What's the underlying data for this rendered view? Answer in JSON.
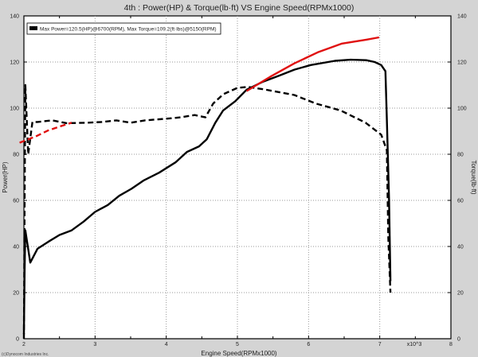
{
  "chart_data": {
    "type": "line",
    "title": "4th : Power(HP) & Torque(lb·ft) VS Engine Speed(RPMx1000)",
    "xlabel": "Engine Speed(RPMx1000)",
    "x_multiplier_label": "x10^3",
    "ylabel_left": "Power(HP)",
    "ylabel_right": "Torque(lb·ft)",
    "xlim": [
      2,
      8
    ],
    "ylim": [
      0,
      140
    ],
    "x_ticks": [
      2,
      3,
      4,
      5,
      6,
      7,
      8
    ],
    "y_ticks": [
      0,
      20,
      40,
      60,
      80,
      100,
      120,
      140
    ],
    "grid": true,
    "legend": {
      "placement": "top-left",
      "text": "Max Power=120.5(HP)@6700(RPM), Max Torque=109.2(ft·lbs)@5150(RPM)"
    },
    "copyright": "(c)Dynocom Industries Inc.",
    "colors": {
      "black": "#000000",
      "red": "#e01010"
    },
    "series": [
      {
        "kind": "power",
        "color": "#000000",
        "dash": false,
        "x": [
          2.0,
          2.01,
          2.02,
          2.09,
          2.19,
          2.34,
          2.5,
          2.67,
          2.84,
          3.0,
          3.18,
          3.34,
          3.51,
          3.68,
          3.9,
          4.13,
          4.29,
          4.46,
          4.57,
          4.69,
          4.8,
          4.97,
          5.13,
          5.36,
          5.58,
          5.8,
          6.03,
          6.37,
          6.59,
          6.81,
          6.93,
          7.02,
          7.08,
          7.1,
          7.13,
          7.15
        ],
        "y": [
          2,
          30,
          47,
          33,
          39,
          42,
          45,
          47,
          50.8,
          55,
          58,
          62,
          65,
          68.6,
          72,
          76.5,
          81,
          83.4,
          86.5,
          93.7,
          99,
          103,
          108,
          111.5,
          114,
          116.7,
          118.7,
          120.5,
          121,
          120.8,
          120,
          118.7,
          116,
          95,
          61,
          25
        ]
      },
      {
        "kind": "torque",
        "color": "#000000",
        "dash": true,
        "x": [
          2.0,
          2.01,
          2.02,
          2.04,
          2.06,
          2.12,
          2.19,
          2.4,
          2.6,
          2.9,
          3.1,
          3.3,
          3.5,
          3.7,
          4.0,
          4.2,
          4.4,
          4.55,
          4.66,
          4.8,
          5.0,
          5.15,
          5.4,
          5.8,
          6.1,
          6.45,
          6.8,
          7.02,
          7.1,
          7.12,
          7.15
        ],
        "y": [
          0,
          60,
          110,
          95,
          80,
          94,
          94,
          94.7,
          93.5,
          93.7,
          94,
          94.7,
          93.7,
          94.7,
          95.4,
          96,
          97,
          96,
          102,
          106,
          108.8,
          109.2,
          108,
          105.7,
          102,
          99,
          93.7,
          88.5,
          81.7,
          44,
          20
        ]
      },
      {
        "kind": "power",
        "color": "#e01010",
        "dash": false,
        "x": [
          5.13,
          5.46,
          5.8,
          6.13,
          6.47,
          6.81,
          6.99
        ],
        "y": [
          107.4,
          113.6,
          119.4,
          124.2,
          128,
          129.7,
          130.7
        ]
      },
      {
        "kind": "torque",
        "color": "#e01010",
        "dash": true,
        "x": [
          1.94,
          2.17,
          2.34,
          2.5,
          2.67
        ],
        "y": [
          85,
          87.8,
          90.3,
          92,
          93.7
        ]
      }
    ]
  }
}
